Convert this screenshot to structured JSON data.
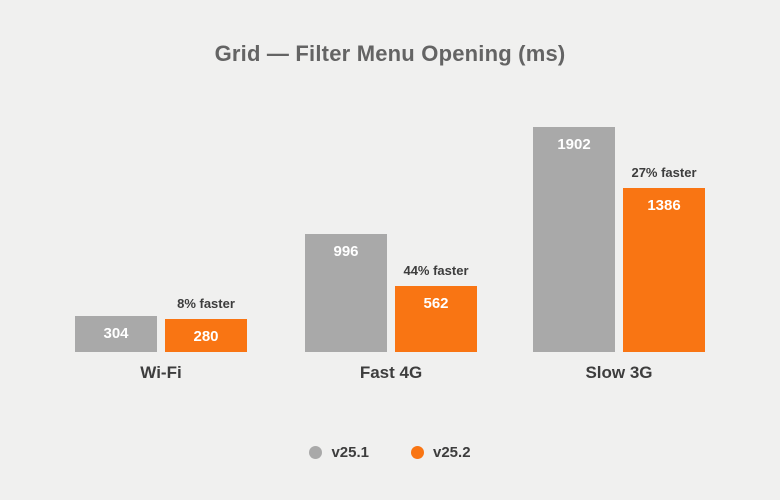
{
  "title": "Grid — Filter Menu Opening (ms)",
  "colors": {
    "background": "#f0f0ef",
    "title_text": "#646464",
    "label_text": "#3d3d3d",
    "bar_value_text": "#ffffff",
    "series_v25_1": "#a9a9a9",
    "series_v25_2": "#f97513"
  },
  "chart_data": {
    "type": "bar",
    "title": "Grid — Filter Menu Opening (ms)",
    "unit": "ms",
    "categories": [
      "Wi-Fi",
      "Fast 4G",
      "Slow 3G"
    ],
    "series": [
      {
        "name": "v25.1",
        "color": "#a9a9a9",
        "values": [
          304,
          996,
          1902
        ]
      },
      {
        "name": "v25.2",
        "color": "#f97513",
        "values": [
          280,
          562,
          1386
        ]
      }
    ],
    "annotations": [
      "8% faster",
      "44% faster",
      "27% faster"
    ],
    "ylim": [
      0,
      1902
    ],
    "grid": false,
    "axes_visible": false,
    "value_labels": "inside-top",
    "legend_position": "bottom"
  }
}
